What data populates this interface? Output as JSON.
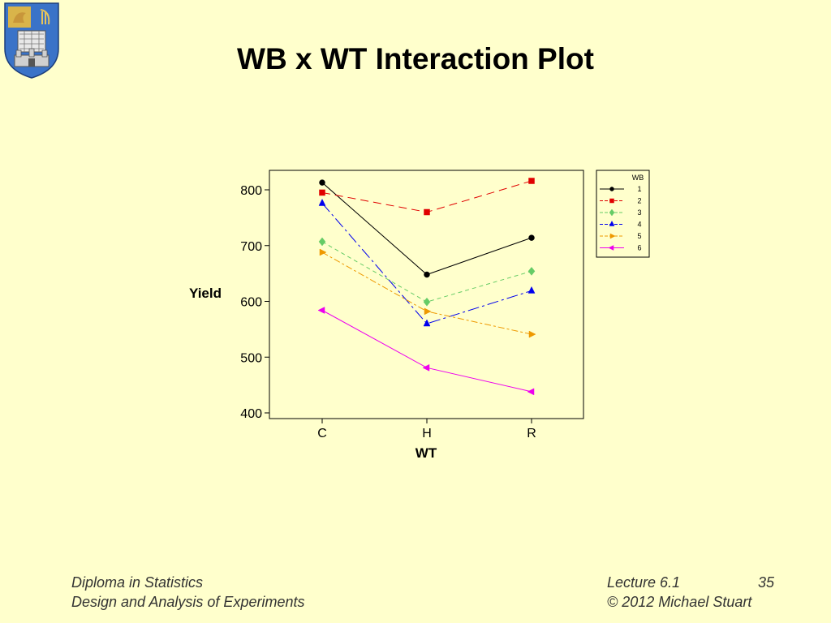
{
  "slide": {
    "title": "WB x WT Interaction Plot",
    "footer_left": [
      "Diploma in Statistics",
      "Design and Analysis of Experiments"
    ],
    "footer_lecture": "Lecture 6.1",
    "footer_page": "35",
    "footer_copyright": "© 2012 Michael Stuart",
    "background": "#ffffcc"
  },
  "logo": {
    "icon": "university-crest-icon"
  },
  "chart_data": {
    "type": "line",
    "title": "",
    "xlabel": "WT",
    "ylabel": "Yield",
    "categories": [
      "C",
      "H",
      "R"
    ],
    "ylim": [
      400,
      820
    ],
    "yticks": [
      400,
      500,
      600,
      700,
      800
    ],
    "grid": false,
    "legend": {
      "title": "WB",
      "placement": "top-right"
    },
    "series": [
      {
        "name": "1",
        "values": [
          813,
          648,
          714
        ],
        "color": "#000000",
        "marker": "circle",
        "dash": ""
      },
      {
        "name": "2",
        "values": [
          795,
          760,
          816
        ],
        "color": "#e00000",
        "marker": "square",
        "dash": "10,6"
      },
      {
        "name": "3",
        "values": [
          707,
          599,
          654
        ],
        "color": "#66cc66",
        "marker": "diamond",
        "dash": "5,4"
      },
      {
        "name": "4",
        "values": [
          776,
          560,
          619
        ],
        "color": "#0000ee",
        "marker": "triangle-up",
        "dash": "14,4,3,4"
      },
      {
        "name": "5",
        "values": [
          688,
          582,
          541
        ],
        "color": "#ee9900",
        "marker": "triangle-right",
        "dash": "8,3,3,3"
      },
      {
        "name": "6",
        "values": [
          584,
          481,
          438
        ],
        "color": "#ee00ee",
        "marker": "triangle-left",
        "dash": ""
      }
    ]
  }
}
